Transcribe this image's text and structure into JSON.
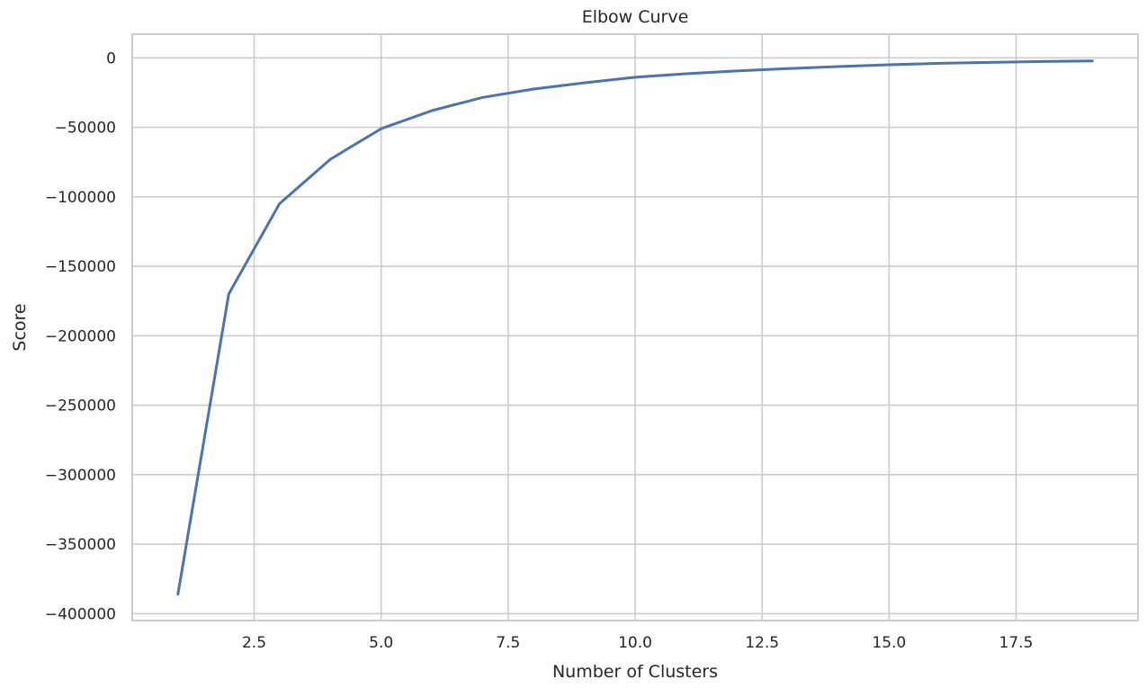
{
  "chart_data": {
    "type": "line",
    "title": "Elbow Curve",
    "xlabel": "Number of Clusters",
    "ylabel": "Score",
    "xlim": [
      0.1,
      19.9
    ],
    "ylim": [
      -405000,
      17000
    ],
    "xticks": [
      2.5,
      5.0,
      7.5,
      10.0,
      12.5,
      15.0,
      17.5
    ],
    "xtick_labels": [
      "2.5",
      "5.0",
      "7.5",
      "10.0",
      "12.5",
      "15.0",
      "17.5"
    ],
    "yticks": [
      0,
      -50000,
      -100000,
      -150000,
      -200000,
      -250000,
      -300000,
      -350000,
      -400000
    ],
    "ytick_labels": [
      "0",
      "−50000",
      "−100000",
      "−150000",
      "−200000",
      "−250000",
      "−300000",
      "−350000",
      "−400000"
    ],
    "grid": true,
    "series": [
      {
        "color": "#4c72b0",
        "x": [
          1,
          2,
          3,
          4,
          5,
          6,
          7,
          8,
          9,
          10,
          11,
          12,
          13,
          14,
          15,
          16,
          17,
          18,
          19
        ],
        "y": [
          -386000,
          -170000,
          -105000,
          -73000,
          -51000,
          -38000,
          -28500,
          -22500,
          -18000,
          -14000,
          -11500,
          -9500,
          -7800,
          -6300,
          -5000,
          -4000,
          -3300,
          -2700,
          -2200
        ]
      }
    ]
  }
}
